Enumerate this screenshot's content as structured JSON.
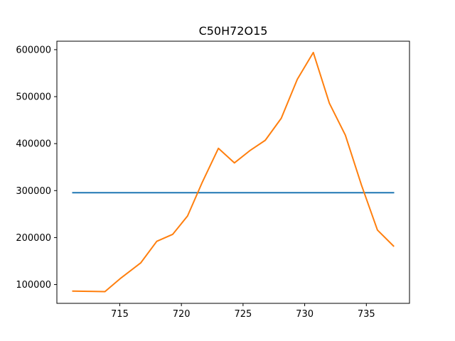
{
  "chart_data": {
    "type": "line",
    "title": "C50H72O15",
    "xlabel": "",
    "ylabel": "",
    "xlim": [
      709.9,
      738.5
    ],
    "ylim": [
      60000,
      618000
    ],
    "xticks": [
      715,
      720,
      725,
      730,
      735
    ],
    "xtick_labels": [
      "715",
      "720",
      "725",
      "730",
      "735"
    ],
    "yticks": [
      100000,
      200000,
      300000,
      400000,
      500000,
      600000
    ],
    "ytick_labels": [
      "100000",
      "200000",
      "300000",
      "400000",
      "500000",
      "600000"
    ],
    "grid": false,
    "series": [
      {
        "color": "#1f77b4",
        "x": [
          711.2,
          737.2
        ],
        "y": [
          295500,
          295500
        ]
      },
      {
        "color": "#ff7f0e",
        "x": [
          711.2,
          712.5,
          713.8,
          715.1,
          716.7,
          718.0,
          719.3,
          720.5,
          721.7,
          723.0,
          724.3,
          725.6,
          726.8,
          728.1,
          729.4,
          730.7,
          732.0,
          733.3,
          734.6,
          735.9,
          737.2
        ],
        "y": [
          86000,
          85500,
          85000,
          114000,
          146000,
          192000,
          207000,
          246000,
          318000,
          390000,
          359000,
          386000,
          407000,
          454000,
          537000,
          594000,
          486000,
          418000,
          312000,
          216000,
          182000
        ]
      }
    ]
  }
}
